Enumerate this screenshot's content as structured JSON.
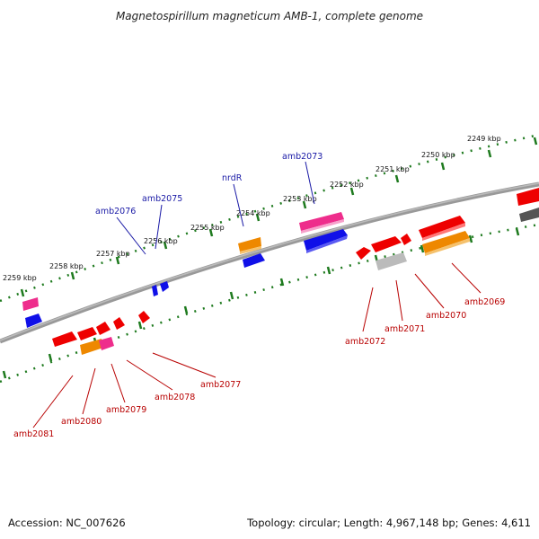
{
  "title": "Magnetospirillum magneticum AMB-1, complete genome",
  "footer": {
    "accession": "Accession: NC_007626",
    "topology": "Topology: circular; Length: 4,967,148 bp; Genes: 4,611"
  },
  "ruler_labels": [
    "2249 kbp",
    "2250 kbp",
    "2251 kbp",
    "2252 kbp",
    "2253 kbp",
    "2254 kbp",
    "2255 kbp",
    "2256 kbp",
    "2257 kbp",
    "2258 kbp",
    "2259 kbp"
  ],
  "top_gene_labels": [
    "amb2073",
    "nrdR",
    "amb2075",
    "amb2076"
  ],
  "bottom_gene_labels": [
    "amb2069",
    "amb2070",
    "amb2071",
    "amb2072",
    "amb2077",
    "amb2078",
    "amb2079",
    "amb2080",
    "amb2081"
  ],
  "colors": {
    "red": "#ee0000",
    "orange": "#ee8800",
    "magenta": "#ee2d8c",
    "blue": "#1010e8",
    "grey": "#bbbbbb",
    "darkgrey": "#555555",
    "ruler": "#1e7a1e",
    "label_top": "#1a1aa6",
    "label_bottom": "#b80000"
  }
}
